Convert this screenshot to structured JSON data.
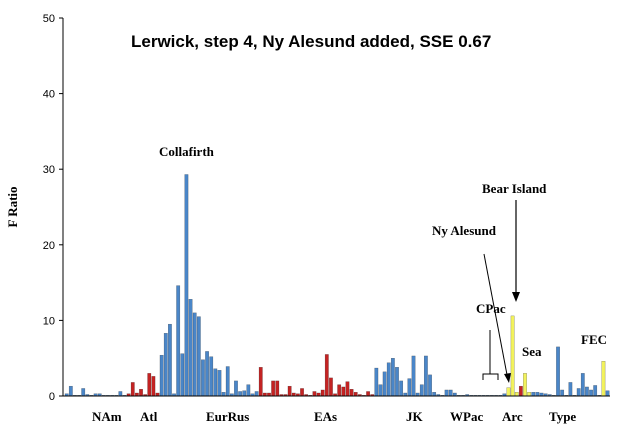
{
  "chart_data": {
    "type": "bar",
    "title": "Lerwick, step 4, Ny Alesund added, SSE 0.67",
    "xlabel": "",
    "ylabel": "F Ratio",
    "ylim": [
      0,
      50
    ],
    "yticks": [
      0,
      10,
      20,
      30,
      40,
      50
    ],
    "grid": false,
    "colors": {
      "blue": "#4a86c8",
      "red": "#c42323",
      "yellow": "#f2f25c"
    },
    "groups": [
      "NAm",
      "Atl",
      "EurRus",
      "EAs",
      "JK",
      "WPac",
      "CPac",
      "Arc",
      "Sea",
      "Type",
      "FEC"
    ],
    "annotations": [
      "Collafirth",
      "Bear Island",
      "Ny Alesund"
    ],
    "bars": [
      {
        "v": 0.3,
        "c": "blue"
      },
      {
        "v": 1.3,
        "c": "blue"
      },
      {
        "v": 0.1,
        "c": "blue"
      },
      {
        "v": 0.1,
        "c": "blue"
      },
      {
        "v": 1.0,
        "c": "blue"
      },
      {
        "v": 0.2,
        "c": "blue"
      },
      {
        "v": 0.1,
        "c": "blue"
      },
      {
        "v": 0.3,
        "c": "blue"
      },
      {
        "v": 0.3,
        "c": "blue"
      },
      {
        "v": 0.1,
        "c": "blue"
      },
      {
        "v": 0.1,
        "c": "blue"
      },
      {
        "v": 0.1,
        "c": "blue"
      },
      {
        "v": 0.1,
        "c": "blue"
      },
      {
        "v": 0.6,
        "c": "blue"
      },
      {
        "v": 0.1,
        "c": "blue"
      },
      {
        "v": 0.3,
        "c": "red"
      },
      {
        "v": 1.8,
        "c": "red"
      },
      {
        "v": 0.4,
        "c": "red"
      },
      {
        "v": 0.9,
        "c": "red"
      },
      {
        "v": 0.2,
        "c": "red"
      },
      {
        "v": 3.0,
        "c": "red"
      },
      {
        "v": 2.6,
        "c": "red"
      },
      {
        "v": 0.4,
        "c": "red"
      },
      {
        "v": 5.4,
        "c": "blue"
      },
      {
        "v": 8.3,
        "c": "blue"
      },
      {
        "v": 9.5,
        "c": "blue"
      },
      {
        "v": 0.3,
        "c": "blue"
      },
      {
        "v": 14.6,
        "c": "blue"
      },
      {
        "v": 5.6,
        "c": "blue"
      },
      {
        "v": 29.3,
        "c": "blue"
      },
      {
        "v": 12.8,
        "c": "blue"
      },
      {
        "v": 11.0,
        "c": "blue"
      },
      {
        "v": 10.5,
        "c": "blue"
      },
      {
        "v": 4.8,
        "c": "blue"
      },
      {
        "v": 5.9,
        "c": "blue"
      },
      {
        "v": 5.2,
        "c": "blue"
      },
      {
        "v": 3.6,
        "c": "blue"
      },
      {
        "v": 3.4,
        "c": "blue"
      },
      {
        "v": 0.5,
        "c": "blue"
      },
      {
        "v": 3.9,
        "c": "blue"
      },
      {
        "v": 0.3,
        "c": "blue"
      },
      {
        "v": 2.0,
        "c": "blue"
      },
      {
        "v": 0.6,
        "c": "blue"
      },
      {
        "v": 0.7,
        "c": "blue"
      },
      {
        "v": 1.5,
        "c": "blue"
      },
      {
        "v": 0.3,
        "c": "blue"
      },
      {
        "v": 0.6,
        "c": "blue"
      },
      {
        "v": 3.8,
        "c": "red"
      },
      {
        "v": 0.4,
        "c": "red"
      },
      {
        "v": 0.4,
        "c": "red"
      },
      {
        "v": 2.0,
        "c": "red"
      },
      {
        "v": 2.0,
        "c": "red"
      },
      {
        "v": 0.2,
        "c": "red"
      },
      {
        "v": 0.2,
        "c": "red"
      },
      {
        "v": 1.3,
        "c": "red"
      },
      {
        "v": 0.4,
        "c": "red"
      },
      {
        "v": 0.3,
        "c": "red"
      },
      {
        "v": 1.0,
        "c": "red"
      },
      {
        "v": 0.2,
        "c": "red"
      },
      {
        "v": 0.1,
        "c": "red"
      },
      {
        "v": 0.6,
        "c": "red"
      },
      {
        "v": 0.4,
        "c": "red"
      },
      {
        "v": 0.8,
        "c": "red"
      },
      {
        "v": 5.5,
        "c": "red"
      },
      {
        "v": 2.4,
        "c": "red"
      },
      {
        "v": 0.3,
        "c": "red"
      },
      {
        "v": 1.5,
        "c": "red"
      },
      {
        "v": 1.2,
        "c": "red"
      },
      {
        "v": 1.9,
        "c": "red"
      },
      {
        "v": 0.9,
        "c": "red"
      },
      {
        "v": 0.5,
        "c": "red"
      },
      {
        "v": 0.2,
        "c": "red"
      },
      {
        "v": 0.1,
        "c": "red"
      },
      {
        "v": 0.6,
        "c": "red"
      },
      {
        "v": 0.2,
        "c": "red"
      },
      {
        "v": 3.7,
        "c": "blue"
      },
      {
        "v": 1.5,
        "c": "blue"
      },
      {
        "v": 3.2,
        "c": "blue"
      },
      {
        "v": 4.4,
        "c": "blue"
      },
      {
        "v": 5.0,
        "c": "blue"
      },
      {
        "v": 3.8,
        "c": "blue"
      },
      {
        "v": 2.0,
        "c": "blue"
      },
      {
        "v": 0.4,
        "c": "blue"
      },
      {
        "v": 2.3,
        "c": "blue"
      },
      {
        "v": 5.3,
        "c": "blue"
      },
      {
        "v": 0.4,
        "c": "blue"
      },
      {
        "v": 1.5,
        "c": "blue"
      },
      {
        "v": 5.3,
        "c": "blue"
      },
      {
        "v": 2.8,
        "c": "blue"
      },
      {
        "v": 0.5,
        "c": "blue"
      },
      {
        "v": 0.2,
        "c": "blue"
      },
      {
        "v": 0.1,
        "c": "blue"
      },
      {
        "v": 0.8,
        "c": "blue"
      },
      {
        "v": 0.8,
        "c": "blue"
      },
      {
        "v": 0.4,
        "c": "blue"
      },
      {
        "v": 0.1,
        "c": "blue"
      },
      {
        "v": 0.1,
        "c": "blue"
      },
      {
        "v": 0.2,
        "c": "blue"
      },
      {
        "v": 0.1,
        "c": "blue"
      },
      {
        "v": 0.1,
        "c": "blue"
      },
      {
        "v": 0.1,
        "c": "blue"
      },
      {
        "v": 0.1,
        "c": "blue"
      },
      {
        "v": 0.1,
        "c": "blue"
      },
      {
        "v": 0.1,
        "c": "blue"
      },
      {
        "v": 0.1,
        "c": "blue"
      },
      {
        "v": 0.1,
        "c": "blue"
      },
      {
        "v": 0.3,
        "c": "blue"
      },
      {
        "v": 1.1,
        "c": "yellow"
      },
      {
        "v": 10.6,
        "c": "yellow"
      },
      {
        "v": 0.5,
        "c": "yellow"
      },
      {
        "v": 1.3,
        "c": "red"
      },
      {
        "v": 3.0,
        "c": "yellow"
      },
      {
        "v": 0.5,
        "c": "yellow"
      },
      {
        "v": 0.5,
        "c": "blue"
      },
      {
        "v": 0.5,
        "c": "blue"
      },
      {
        "v": 0.4,
        "c": "blue"
      },
      {
        "v": 0.3,
        "c": "blue"
      },
      {
        "v": 0.2,
        "c": "blue"
      },
      {
        "v": 0.1,
        "c": "blue"
      },
      {
        "v": 6.5,
        "c": "blue"
      },
      {
        "v": 0.8,
        "c": "blue"
      },
      {
        "v": 0.1,
        "c": "blue"
      },
      {
        "v": 1.8,
        "c": "blue"
      },
      {
        "v": 0.1,
        "c": "blue"
      },
      {
        "v": 1.0,
        "c": "blue"
      },
      {
        "v": 3.0,
        "c": "blue"
      },
      {
        "v": 1.2,
        "c": "blue"
      },
      {
        "v": 0.8,
        "c": "blue"
      },
      {
        "v": 1.4,
        "c": "blue"
      },
      {
        "v": 0.1,
        "c": "blue"
      },
      {
        "v": 4.6,
        "c": "yellow"
      },
      {
        "v": 0.7,
        "c": "blue"
      }
    ]
  }
}
